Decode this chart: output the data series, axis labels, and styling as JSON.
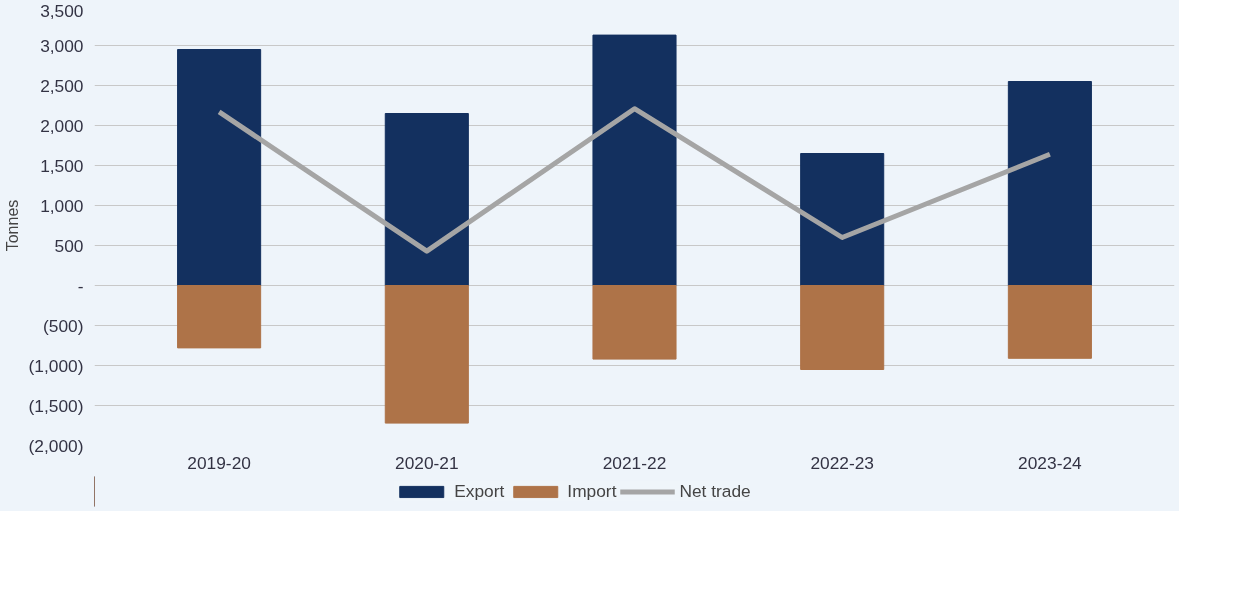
{
  "chart_data": {
    "type": "bar",
    "stacked": true,
    "ylabel": "Tonnes",
    "categories": [
      "2019-20",
      "2020-21",
      "2021-22",
      "2022-23",
      "2023-24"
    ],
    "series": [
      {
        "name": "Export",
        "color": "#13305f",
        "values": [
          2950,
          2150,
          3130,
          1650,
          2550
        ]
      },
      {
        "name": "Import",
        "color": "#ae7348",
        "values": [
          -780,
          -1720,
          -920,
          -1050,
          -910
        ]
      },
      {
        "name": "Net trade",
        "type": "line",
        "color": "#a5a5a5",
        "values": [
          2170,
          430,
          2210,
          600,
          1640
        ]
      }
    ],
    "ylim": [
      -2000,
      3500
    ],
    "yticks": [
      {
        "value": -2000,
        "label": "(2,000)"
      },
      {
        "value": -1500,
        "label": "(1,500)"
      },
      {
        "value": -1000,
        "label": "(1,000)"
      },
      {
        "value": -500,
        "label": "(500)"
      },
      {
        "value": 0,
        "label": "-"
      },
      {
        "value": 500,
        "label": "500"
      },
      {
        "value": 1000,
        "label": "1,000"
      },
      {
        "value": 1500,
        "label": "1,500"
      },
      {
        "value": 2000,
        "label": "2,000"
      },
      {
        "value": 2500,
        "label": "2,500"
      },
      {
        "value": 3000,
        "label": "3,000"
      },
      {
        "value": 3500,
        "label": "3,500"
      }
    ],
    "grid": "y",
    "legend": "bottom"
  }
}
